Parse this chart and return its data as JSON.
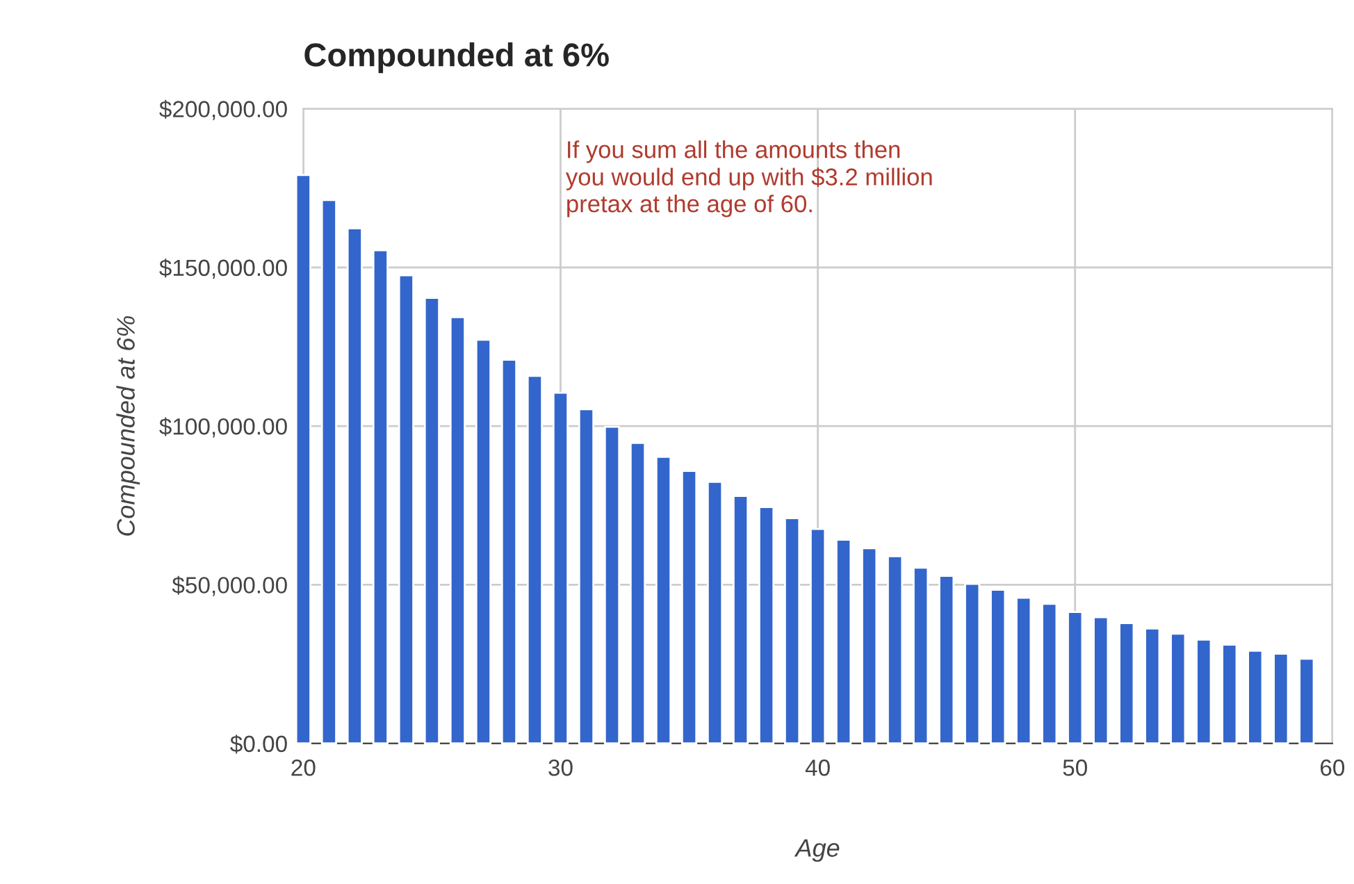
{
  "chart_data": {
    "type": "bar",
    "title": "Compounded at 6%",
    "xlabel": "Age",
    "ylabel": "Compounded at 6%",
    "x": [
      20,
      21,
      22,
      23,
      24,
      25,
      26,
      27,
      28,
      29,
      30,
      31,
      32,
      33,
      34,
      35,
      36,
      37,
      38,
      39,
      40,
      41,
      42,
      43,
      44,
      45,
      46,
      47,
      48,
      49,
      50,
      51,
      52,
      53,
      54,
      55,
      56,
      57,
      58,
      59
    ],
    "values": [
      179100,
      171200,
      162300,
      155400,
      147500,
      140400,
      134300,
      127200,
      120900,
      115800,
      110500,
      105300,
      99800,
      94700,
      90300,
      85900,
      82400,
      78000,
      74500,
      71000,
      67600,
      64200,
      61500,
      59000,
      55400,
      52800,
      50300,
      48400,
      45900,
      44000,
      41400,
      39800,
      37900,
      36200,
      34600,
      32700,
      31100,
      29200,
      28300,
      26700
    ],
    "color": "#3366cc",
    "xlim": [
      20,
      60
    ],
    "xticks": [
      20,
      30,
      40,
      50,
      60
    ],
    "ylim": [
      0,
      200000
    ],
    "yticks": [
      {
        "value": 0,
        "label": "$0.00"
      },
      {
        "value": 50000,
        "label": "$50,000.00"
      },
      {
        "value": 100000,
        "label": "$100,000.00"
      },
      {
        "value": 150000,
        "label": "$150,000.00"
      },
      {
        "value": 200000,
        "label": "$200,000.00"
      }
    ],
    "grid": true,
    "annotations": [
      "If you sum all the amounts then\nyou would end up with $3.2 million\npretax at the age of 60."
    ]
  }
}
